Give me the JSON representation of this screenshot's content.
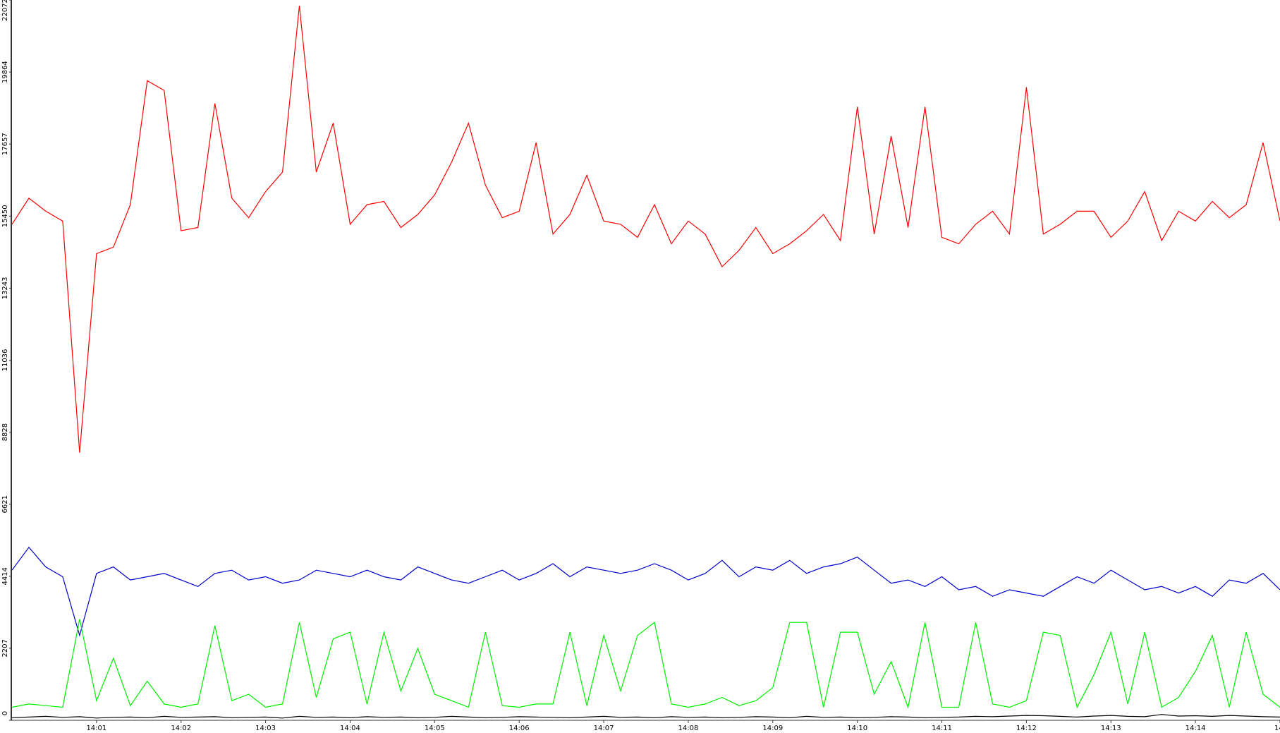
{
  "chart_data": {
    "type": "line",
    "x": [
      840.0,
      840.2,
      840.4,
      840.6,
      840.8,
      841.0,
      841.2,
      841.4,
      841.6,
      841.8,
      842.0,
      842.2,
      842.4,
      842.6,
      842.8,
      843.0,
      843.2,
      843.4,
      843.6,
      843.8,
      844.0,
      844.2,
      844.4,
      844.6,
      844.8,
      845.0,
      845.2,
      845.4,
      845.6,
      845.8,
      846.0,
      846.2,
      846.4,
      846.6,
      846.8,
      847.0,
      847.2,
      847.4,
      847.6,
      847.8,
      848.0,
      848.2,
      848.4,
      848.6,
      848.8,
      849.0,
      849.2,
      849.4,
      849.6,
      849.8,
      850.0,
      850.2,
      850.4,
      850.6,
      850.8,
      851.0,
      851.2,
      851.4,
      851.6,
      851.8,
      852.0,
      852.2,
      852.4,
      852.6,
      852.8,
      853.0,
      853.2,
      853.4,
      853.6,
      853.8,
      854.0,
      854.2,
      854.4,
      854.6,
      854.8,
      855.0
    ],
    "series": [
      {
        "color": "#ff0000",
        "values": [
          15200,
          16000,
          15600,
          15300,
          8200,
          14300,
          14500,
          15800,
          19600,
          19300,
          15000,
          15100,
          18900,
          16000,
          15400,
          16200,
          16800,
          21900,
          16800,
          18300,
          15200,
          15800,
          15900,
          15100,
          15500,
          16100,
          17100,
          18300,
          16400,
          15400,
          15600,
          17700,
          14900,
          15500,
          16700,
          15300,
          15200,
          14800,
          15800,
          14600,
          15300,
          14900,
          13900,
          14400,
          15100,
          14300,
          14600,
          15000,
          15500,
          14700,
          18800,
          14900,
          17900,
          15100,
          18800,
          14800,
          14600,
          15200,
          15600,
          14900,
          19400,
          14900,
          15200,
          15600,
          15600,
          14800,
          15300,
          16200,
          14700,
          15600,
          15300,
          15900,
          15400,
          15800,
          17700,
          15300
        ]
      },
      {
        "color": "#0000cc",
        "values": [
          4600,
          5300,
          4700,
          4400,
          2600,
          4500,
          4700,
          4300,
          4400,
          4500,
          4300,
          4100,
          4500,
          4600,
          4300,
          4400,
          4200,
          4300,
          4600,
          4500,
          4400,
          4600,
          4400,
          4300,
          4700,
          4500,
          4300,
          4200,
          4400,
          4600,
          4300,
          4500,
          4800,
          4400,
          4700,
          4600,
          4500,
          4600,
          4800,
          4600,
          4300,
          4500,
          4900,
          4400,
          4700,
          4600,
          4900,
          4500,
          4700,
          4800,
          5000,
          4600,
          4200,
          4300,
          4100,
          4400,
          4000,
          4100,
          3800,
          4000,
          3900,
          3800,
          4100,
          4400,
          4200,
          4600,
          4300,
          4000,
          4100,
          3900,
          4100,
          3800,
          4300,
          4200,
          4500,
          4000
        ]
      },
      {
        "color": "#00ee00",
        "values": [
          400,
          500,
          450,
          400,
          3100,
          600,
          1900,
          450,
          1200,
          500,
          400,
          500,
          2900,
          600,
          800,
          400,
          500,
          3000,
          700,
          2500,
          2700,
          500,
          2700,
          900,
          2200,
          800,
          600,
          400,
          2700,
          450,
          400,
          500,
          500,
          2700,
          450,
          2600,
          900,
          2600,
          3000,
          500,
          400,
          500,
          700,
          450,
          600,
          1000,
          3000,
          3000,
          400,
          2700,
          2700,
          800,
          1800,
          400,
          3000,
          400,
          400,
          3000,
          500,
          400,
          600,
          2700,
          2600,
          400,
          1400,
          2700,
          500,
          2700,
          400,
          700,
          1500,
          2600,
          400,
          2700,
          800,
          400
        ]
      },
      {
        "color": "#000000",
        "values": [
          80,
          100,
          120,
          90,
          110,
          70,
          90,
          100,
          80,
          120,
          90,
          100,
          110,
          80,
          90,
          100,
          70,
          120,
          90,
          100,
          80,
          110,
          90,
          100,
          80,
          90,
          120,
          100,
          80,
          90,
          110,
          100,
          90,
          80,
          100,
          120,
          90,
          100,
          80,
          110,
          90,
          100,
          80,
          90,
          110,
          100,
          80,
          120,
          90,
          100,
          80,
          90,
          110,
          100,
          80,
          90,
          100,
          120,
          110,
          130,
          150,
          140,
          120,
          100,
          130,
          150,
          120,
          110,
          180,
          130,
          140,
          120,
          150,
          130,
          110,
          100
        ]
      }
    ],
    "xlim": [
      840,
      855
    ],
    "xticks": [
      {
        "value": 841,
        "label": "14:01"
      },
      {
        "value": 842,
        "label": "14:02"
      },
      {
        "value": 843,
        "label": "14:03"
      },
      {
        "value": 844,
        "label": "14:04"
      },
      {
        "value": 845,
        "label": "14:05"
      },
      {
        "value": 846,
        "label": "14:06"
      },
      {
        "value": 847,
        "label": "14:07"
      },
      {
        "value": 848,
        "label": "14:08"
      },
      {
        "value": 849,
        "label": "14:09"
      },
      {
        "value": 850,
        "label": "14:10"
      },
      {
        "value": 851,
        "label": "14:11"
      },
      {
        "value": 852,
        "label": "14:12"
      },
      {
        "value": 853,
        "label": "14:13"
      },
      {
        "value": 854,
        "label": "14:14"
      },
      {
        "value": 855,
        "label": "14:"
      }
    ],
    "ylim": [
      0,
      22072
    ],
    "yticks": [
      0,
      2207,
      4414,
      6621,
      8828,
      11036,
      13243,
      15450,
      17657,
      19864,
      22072
    ],
    "grid": false
  }
}
